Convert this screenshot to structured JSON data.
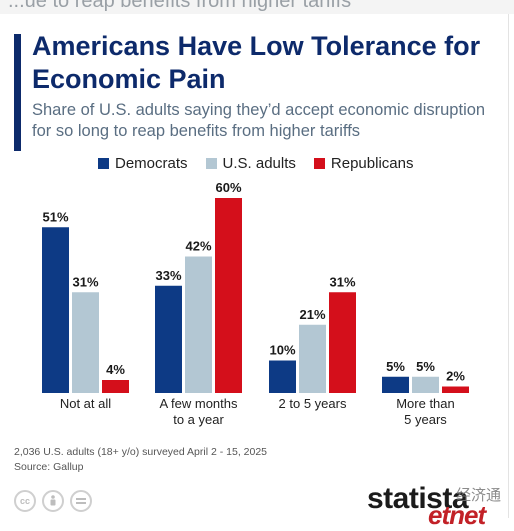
{
  "header": {
    "cut_text": "...ue to reap benefits from higher tariffs",
    "title": "Americans Have Low Tolerance for Economic Pain",
    "subtitle": "Share of U.S. adults saying they’d accept economic disruption for so long to reap benefits from higher tariffs"
  },
  "colors": {
    "democrats": "#0d3a85",
    "us_adults": "#b3c7d3",
    "republicans": "#d40f1b",
    "title": "#0d2a6b"
  },
  "chart_data": {
    "type": "bar",
    "categories": [
      "Not at all",
      "A few months to a year",
      "2 to 5 years",
      "More than 5 years"
    ],
    "category_lines": [
      [
        "Not at all"
      ],
      [
        "A few months",
        "to a year"
      ],
      [
        "2 to 5 years"
      ],
      [
        "More than",
        "5 years"
      ]
    ],
    "series": [
      {
        "name": "Democrats",
        "values": [
          51,
          33,
          10,
          5
        ],
        "labels": [
          "51%",
          "33%",
          "10%",
          "5%"
        ]
      },
      {
        "name": "U.S. adults",
        "values": [
          31,
          42,
          21,
          5
        ],
        "labels": [
          "31%",
          "42%",
          "21%",
          "5%"
        ]
      },
      {
        "name": "Republicans",
        "values": [
          4,
          60,
          31,
          2
        ],
        "labels": [
          "4%",
          "60%",
          "31%",
          "2%"
        ]
      }
    ],
    "ylim": [
      0,
      60
    ],
    "grid": false,
    "legend_placement": "top"
  },
  "footer": {
    "note": "2,036 U.S. adults (18+ y/o) surveyed April 2 - 15, 2025",
    "source": "Source: Gallup",
    "license_icons": [
      "cc-icon",
      "by-icon",
      "nd-icon"
    ],
    "brand": "statista",
    "watermark_top": "经济通",
    "watermark": "etnet"
  }
}
